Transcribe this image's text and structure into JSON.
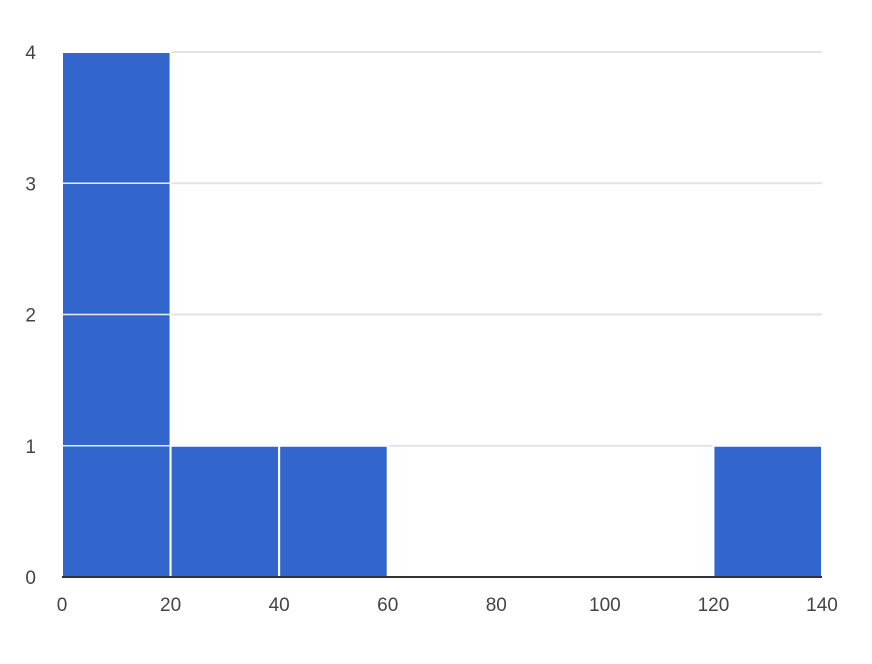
{
  "chart_data": {
    "type": "bar",
    "variant": "histogram",
    "bins": [
      {
        "start": 0,
        "end": 20,
        "count": 4
      },
      {
        "start": 20,
        "end": 40,
        "count": 1
      },
      {
        "start": 40,
        "end": 60,
        "count": 1
      },
      {
        "start": 60,
        "end": 80,
        "count": 0
      },
      {
        "start": 80,
        "end": 100,
        "count": 0
      },
      {
        "start": 100,
        "end": 120,
        "count": 0
      },
      {
        "start": 120,
        "end": 140,
        "count": 1
      }
    ],
    "x_ticks": [
      "0",
      "20",
      "40",
      "60",
      "80",
      "100",
      "120",
      "140"
    ],
    "y_ticks": [
      "0",
      "1",
      "2",
      "3",
      "4"
    ],
    "xlim": [
      0,
      140
    ],
    "ylim": [
      0,
      4
    ],
    "grid": true,
    "bar_color": "#3366cc",
    "title": "",
    "xlabel": "",
    "ylabel": ""
  }
}
